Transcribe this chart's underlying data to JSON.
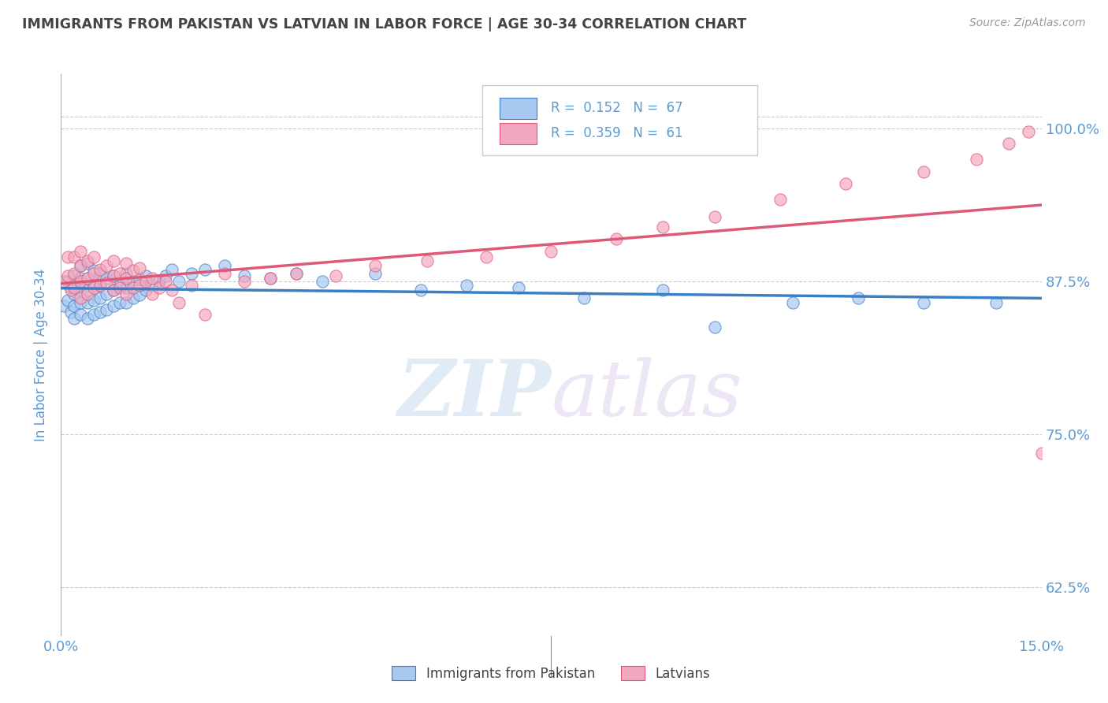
{
  "title": "IMMIGRANTS FROM PAKISTAN VS LATVIAN IN LABOR FORCE | AGE 30-34 CORRELATION CHART",
  "source_text": "Source: ZipAtlas.com",
  "ylabel": "In Labor Force | Age 30-34",
  "xlim": [
    0.0,
    0.15
  ],
  "ylim": [
    0.585,
    1.045
  ],
  "ytick_labels": [
    "100.0%",
    "87.5%",
    "75.0%",
    "62.5%"
  ],
  "ytick_values": [
    1.0,
    0.875,
    0.75,
    0.625
  ],
  "xtick_labels": [
    "0.0%",
    "15.0%"
  ],
  "xtick_values": [
    0.0,
    0.15
  ],
  "R_blue": 0.152,
  "N_blue": 67,
  "R_pink": 0.359,
  "N_pink": 61,
  "blue_color": "#A8C8F0",
  "pink_color": "#F4A8C0",
  "blue_line_color": "#3A7EC6",
  "pink_line_color": "#E05878",
  "legend_label_blue": "Immigrants from Pakistan",
  "legend_label_pink": "Latvians",
  "watermark_zip": "ZIP",
  "watermark_atlas": "atlas",
  "background_color": "#FFFFFF",
  "title_color": "#444444",
  "axis_color": "#5B9BD5",
  "blue_scatter_x": [
    0.0005,
    0.001,
    0.001,
    0.0015,
    0.0015,
    0.002,
    0.002,
    0.002,
    0.002,
    0.003,
    0.003,
    0.003,
    0.003,
    0.003,
    0.004,
    0.004,
    0.004,
    0.004,
    0.004,
    0.005,
    0.005,
    0.005,
    0.005,
    0.006,
    0.006,
    0.006,
    0.006,
    0.007,
    0.007,
    0.007,
    0.008,
    0.008,
    0.008,
    0.009,
    0.009,
    0.01,
    0.01,
    0.01,
    0.011,
    0.011,
    0.012,
    0.012,
    0.013,
    0.013,
    0.014,
    0.015,
    0.016,
    0.017,
    0.018,
    0.02,
    0.022,
    0.025,
    0.028,
    0.032,
    0.036,
    0.04,
    0.048,
    0.055,
    0.062,
    0.07,
    0.08,
    0.092,
    0.1,
    0.112,
    0.122,
    0.132,
    0.143
  ],
  "blue_scatter_y": [
    0.855,
    0.86,
    0.875,
    0.85,
    0.87,
    0.845,
    0.855,
    0.865,
    0.88,
    0.848,
    0.858,
    0.868,
    0.878,
    0.888,
    0.845,
    0.858,
    0.868,
    0.878,
    0.89,
    0.848,
    0.86,
    0.872,
    0.884,
    0.85,
    0.862,
    0.872,
    0.882,
    0.852,
    0.865,
    0.878,
    0.855,
    0.868,
    0.88,
    0.858,
    0.872,
    0.858,
    0.87,
    0.882,
    0.862,
    0.875,
    0.864,
    0.877,
    0.868,
    0.88,
    0.872,
    0.876,
    0.88,
    0.885,
    0.875,
    0.882,
    0.885,
    0.888,
    0.88,
    0.878,
    0.882,
    0.875,
    0.882,
    0.868,
    0.872,
    0.87,
    0.862,
    0.868,
    0.838,
    0.858,
    0.862,
    0.858,
    0.858
  ],
  "pink_scatter_x": [
    0.0005,
    0.001,
    0.001,
    0.0015,
    0.002,
    0.002,
    0.002,
    0.003,
    0.003,
    0.003,
    0.003,
    0.004,
    0.004,
    0.004,
    0.005,
    0.005,
    0.005,
    0.006,
    0.006,
    0.007,
    0.007,
    0.008,
    0.008,
    0.008,
    0.009,
    0.009,
    0.01,
    0.01,
    0.01,
    0.011,
    0.011,
    0.012,
    0.012,
    0.013,
    0.014,
    0.014,
    0.015,
    0.016,
    0.017,
    0.018,
    0.02,
    0.022,
    0.025,
    0.028,
    0.032,
    0.036,
    0.042,
    0.048,
    0.056,
    0.065,
    0.075,
    0.085,
    0.092,
    0.1,
    0.11,
    0.12,
    0.132,
    0.14,
    0.145,
    0.148,
    0.15
  ],
  "pink_scatter_y": [
    0.875,
    0.88,
    0.895,
    0.868,
    0.87,
    0.882,
    0.895,
    0.862,
    0.875,
    0.888,
    0.9,
    0.865,
    0.878,
    0.892,
    0.87,
    0.882,
    0.895,
    0.872,
    0.885,
    0.874,
    0.888,
    0.868,
    0.88,
    0.892,
    0.87,
    0.882,
    0.865,
    0.878,
    0.89,
    0.87,
    0.884,
    0.872,
    0.886,
    0.875,
    0.865,
    0.878,
    0.87,
    0.875,
    0.868,
    0.858,
    0.872,
    0.848,
    0.882,
    0.875,
    0.878,
    0.882,
    0.88,
    0.888,
    0.892,
    0.895,
    0.9,
    0.91,
    0.92,
    0.928,
    0.942,
    0.955,
    0.965,
    0.975,
    0.988,
    0.998,
    0.735
  ]
}
